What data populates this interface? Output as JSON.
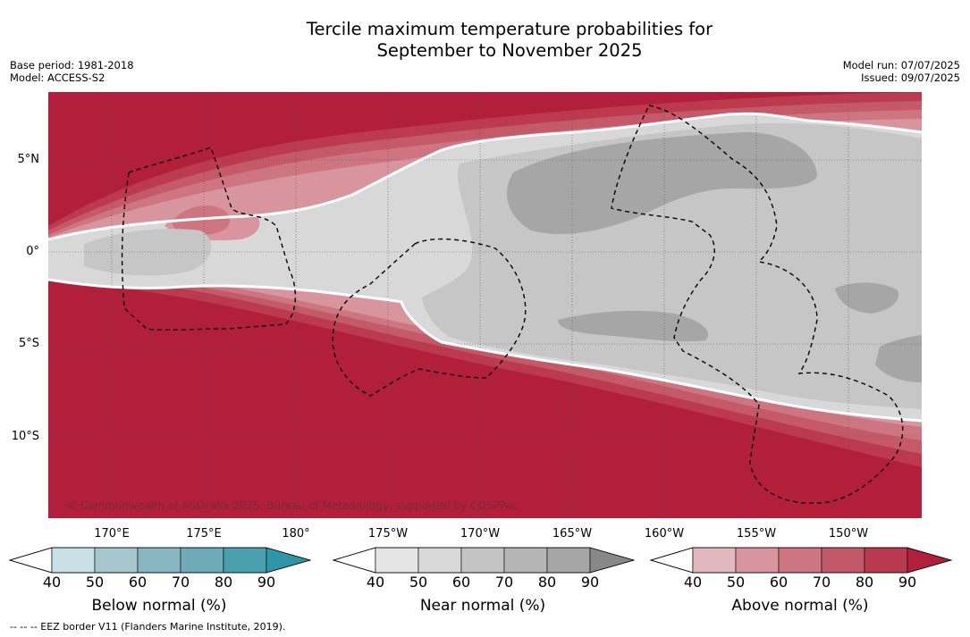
{
  "title_line1": "Tercile maximum temperature probabilities for",
  "title_line2": "September to November 2025",
  "base_period": "Base period: 1981-2018",
  "model": "Model: ACCESS-S2",
  "model_run": "Model run: 07/07/2025",
  "issued": "Issued: 09/07/2025",
  "copyright": "© Commonwealth of Australia 2025, Bureau of Meteorology, supported by COSPPac",
  "footnote": "--  --  -- EEZ border V11 (Flanders Marine Institute, 2019).",
  "lon_labels": [
    "170°E",
    "175°E",
    "180°",
    "175°W",
    "170°W",
    "165°W",
    "160°W",
    "155°W",
    "150°W"
  ],
  "lat_labels": [
    "5°N",
    "0°",
    "5°S",
    "10°S"
  ],
  "colorbars": [
    {
      "title": "Below normal (%)",
      "ticks": [
        "40",
        "50",
        "60",
        "70",
        "80",
        "90"
      ],
      "colors": [
        "#c9e0e6",
        "#a6c7ce",
        "#89b7c1",
        "#6dabb8",
        "#4ba0b0",
        "#2f95a8"
      ]
    },
    {
      "title": "Near normal (%)",
      "ticks": [
        "40",
        "50",
        "60",
        "70",
        "80",
        "90"
      ],
      "colors": [
        "#e5e5e5",
        "#d8d8d8",
        "#c4c4c4",
        "#b5b5b5",
        "#a6a6a6",
        "#888888"
      ]
    },
    {
      "title": "Above normal (%)",
      "ticks": [
        "40",
        "50",
        "60",
        "70",
        "80",
        "90"
      ],
      "colors": [
        "#e0b8bd",
        "#d8959e",
        "#cd7681",
        "#c35968",
        "#b93a4e",
        "#b21f3b"
      ]
    }
  ],
  "colors": {
    "above_90": "#b21f3b",
    "above_80": "#bb3a4e",
    "above_70": "#c45a68",
    "above_60": "#ce7582",
    "above_50": "#d8959e",
    "near_50": "#d8d8d8",
    "near_60": "#c6c6c6",
    "near_80": "#a6a6a6"
  }
}
